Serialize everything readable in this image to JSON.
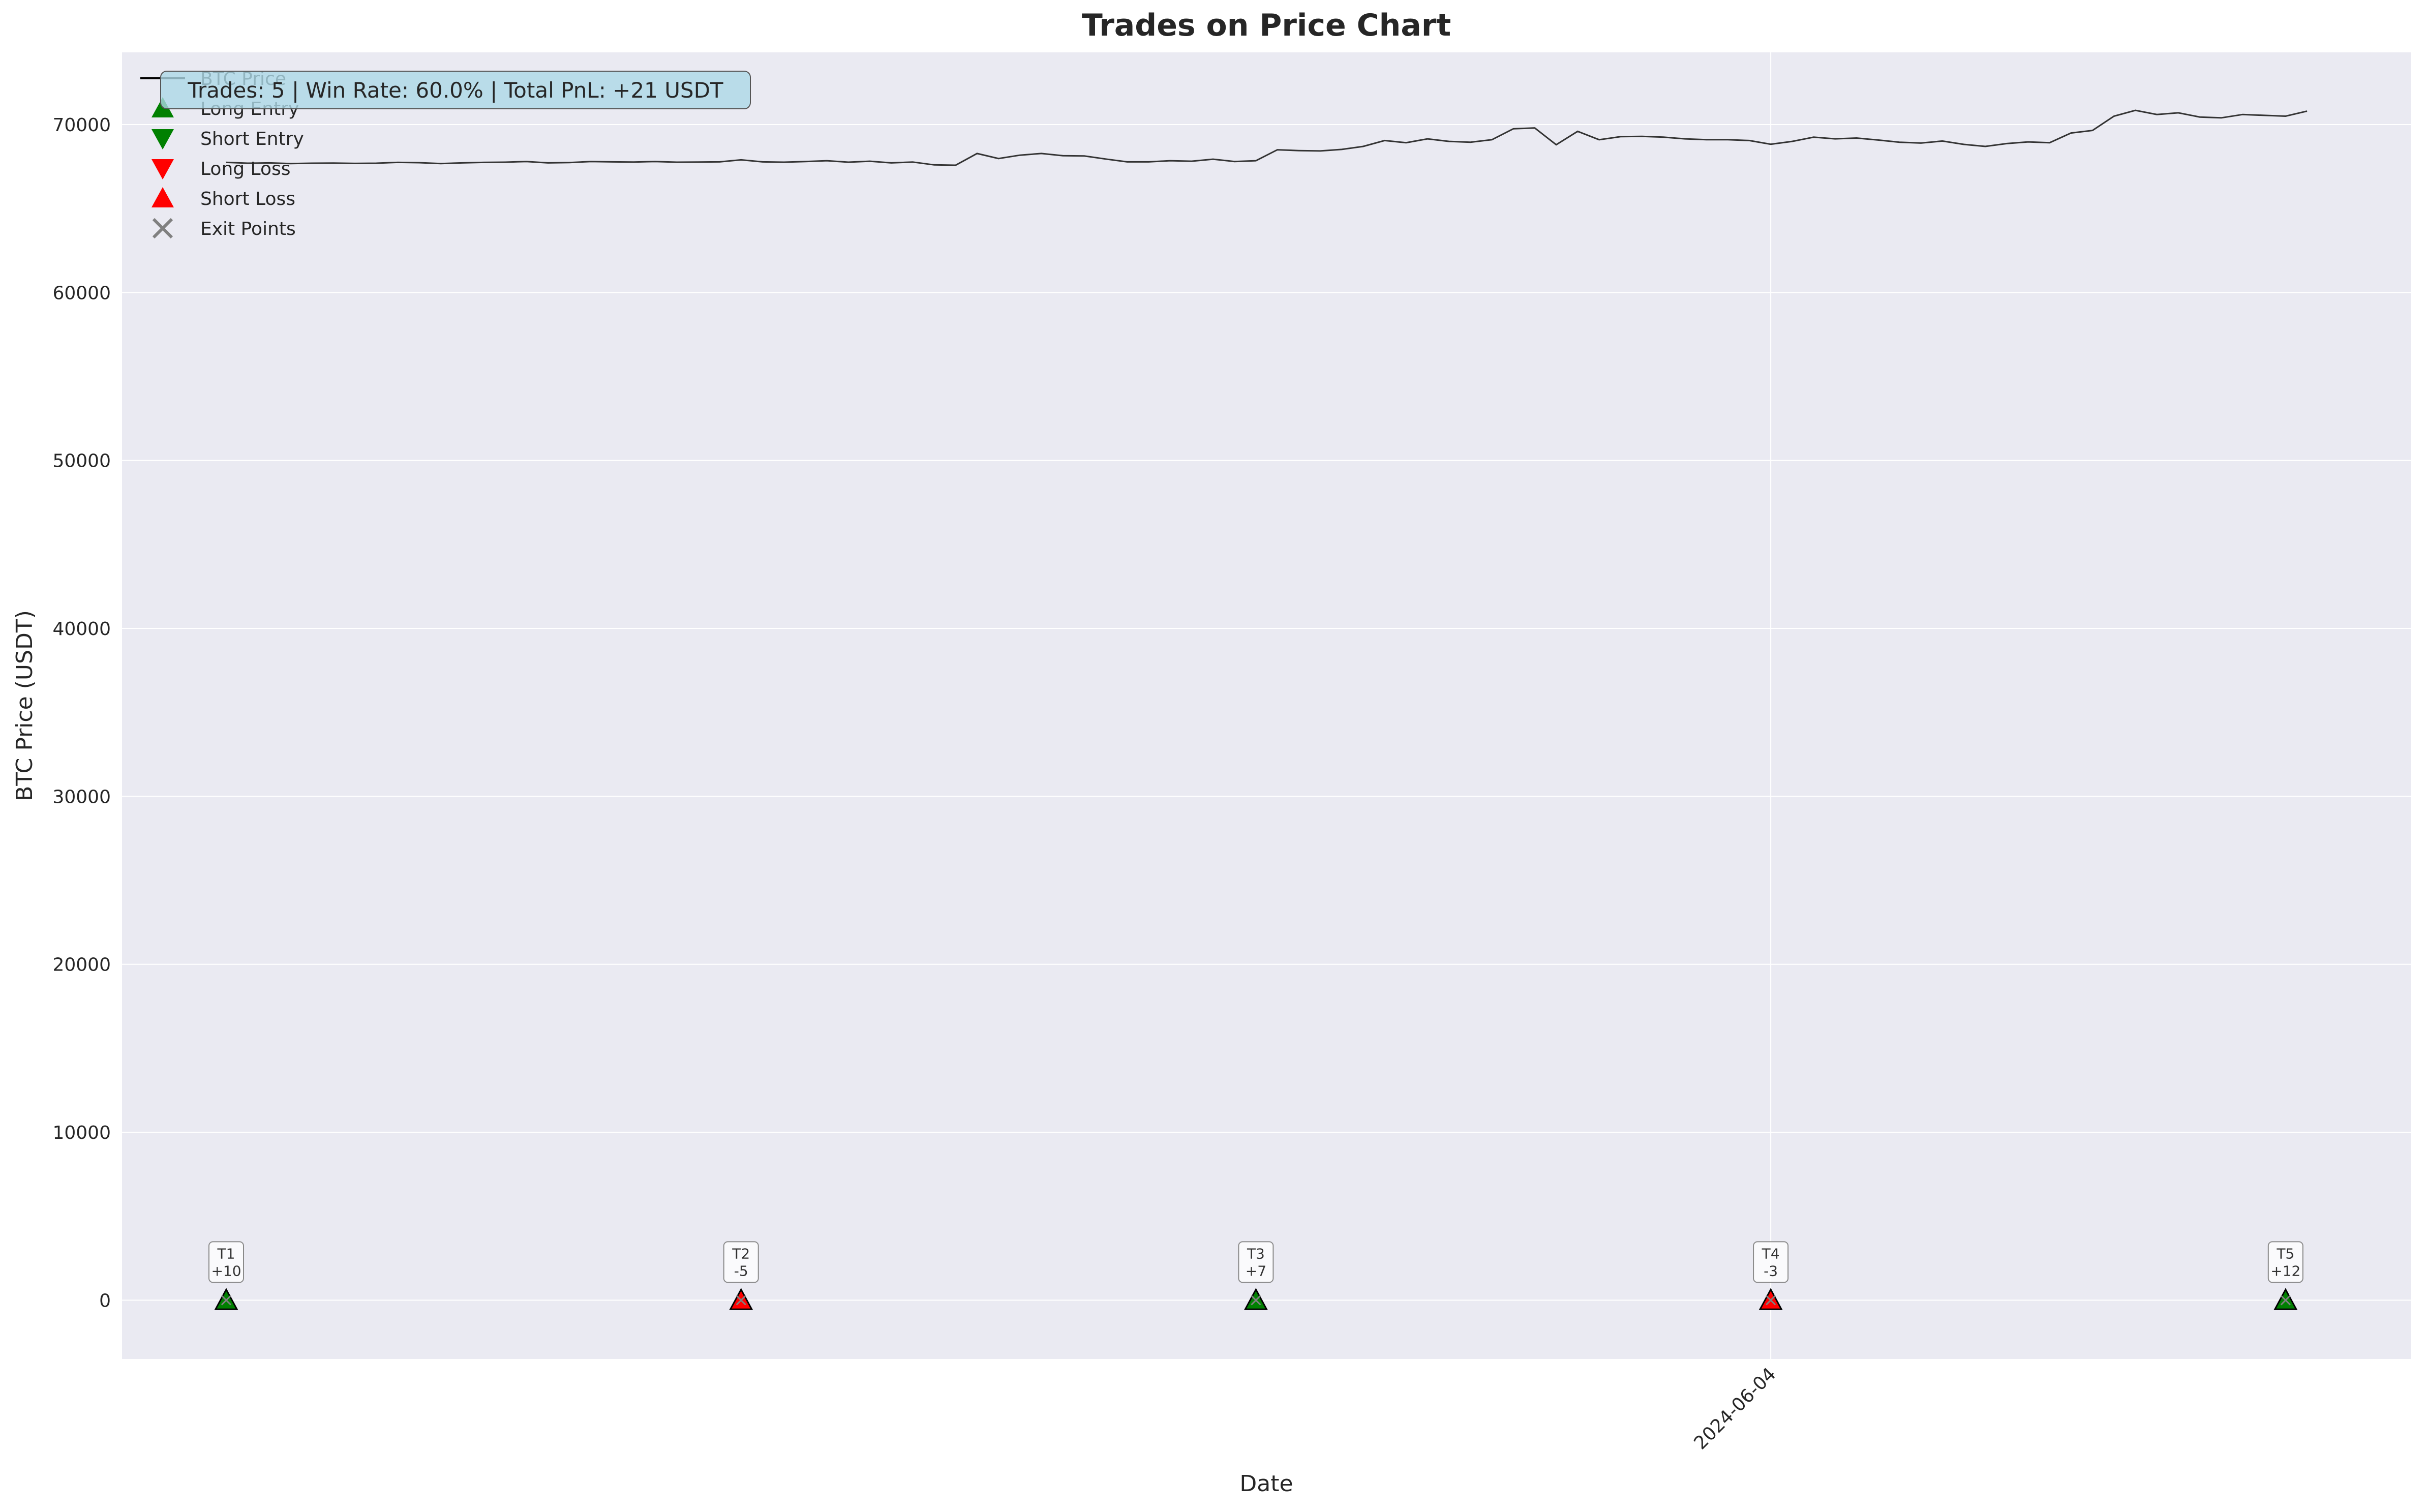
{
  "chart_data": {
    "type": "line",
    "title": "Trades on Price Chart",
    "xlabel": "Date",
    "ylabel": "BTC Price (USDT)",
    "ylim": [
      -3500,
      74300
    ],
    "yticks": [
      0,
      10000,
      20000,
      30000,
      40000,
      50000,
      60000,
      70000
    ],
    "xtick_labels": [
      "2024-06-04"
    ],
    "grid": true,
    "legend_position": "upper-left",
    "legend": [
      {
        "label": "BTC Price",
        "marker": "line",
        "color": "#000000"
      },
      {
        "label": "Long Entry",
        "marker": "triangle-up",
        "color": "#008000"
      },
      {
        "label": "Short Entry",
        "marker": "triangle-down",
        "color": "#008000"
      },
      {
        "label": "Long Loss",
        "marker": "triangle-down",
        "color": "#ff0000"
      },
      {
        "label": "Short Loss",
        "marker": "triangle-up",
        "color": "#ff0000"
      },
      {
        "label": "Exit Points",
        "marker": "x",
        "color": "#808080"
      }
    ],
    "summary_box": "Trades: 5 | Win Rate: 60.0% | Total PnL: +21 USDT",
    "series": [
      {
        "name": "BTC Price",
        "color": "#333333",
        "values": [
          67750,
          67700,
          67720,
          67680,
          67700,
          67710,
          67690,
          67700,
          67750,
          67730,
          67680,
          67720,
          67750,
          67760,
          67800,
          67720,
          67740,
          67800,
          67780,
          67770,
          67800,
          67760,
          67770,
          67780,
          67900,
          67780,
          67760,
          67800,
          67850,
          67760,
          67820,
          67720,
          67770,
          67600,
          67580,
          68280,
          67980,
          68180,
          68280,
          68150,
          68130,
          67950,
          67780,
          67780,
          67850,
          67820,
          67940,
          67800,
          67850,
          68500,
          68450,
          68430,
          68520,
          68700,
          69050,
          68920,
          69150,
          69000,
          68950,
          69100,
          69750,
          69800,
          68800,
          69600,
          69100,
          69280,
          69300,
          69250,
          69150,
          69100,
          69100,
          69050,
          68830,
          69000,
          69250,
          69150,
          69200,
          69080,
          68950,
          68900,
          69020,
          68820,
          68700,
          68870,
          68970,
          68920,
          69500,
          69650,
          70500,
          70850,
          70600,
          70700,
          70450,
          70400,
          70600,
          70550,
          70500,
          70800
        ]
      }
    ],
    "trades": [
      {
        "id": "T1",
        "pnl": "+10",
        "index": 0,
        "price": 0,
        "kind": "Long Entry",
        "color": "#008000"
      },
      {
        "id": "T2",
        "pnl": "-5",
        "index": 24,
        "price": 0,
        "kind": "Short Loss",
        "color": "#ff0000"
      },
      {
        "id": "T3",
        "pnl": "+7",
        "index": 48,
        "price": 0,
        "kind": "Long Entry",
        "color": "#008000"
      },
      {
        "id": "T4",
        "pnl": "-3",
        "index": 72,
        "price": 0,
        "kind": "Short Loss",
        "color": "#ff0000"
      },
      {
        "id": "T5",
        "pnl": "+12",
        "index": 96,
        "price": 0,
        "kind": "Long Entry",
        "color": "#008000"
      }
    ]
  }
}
